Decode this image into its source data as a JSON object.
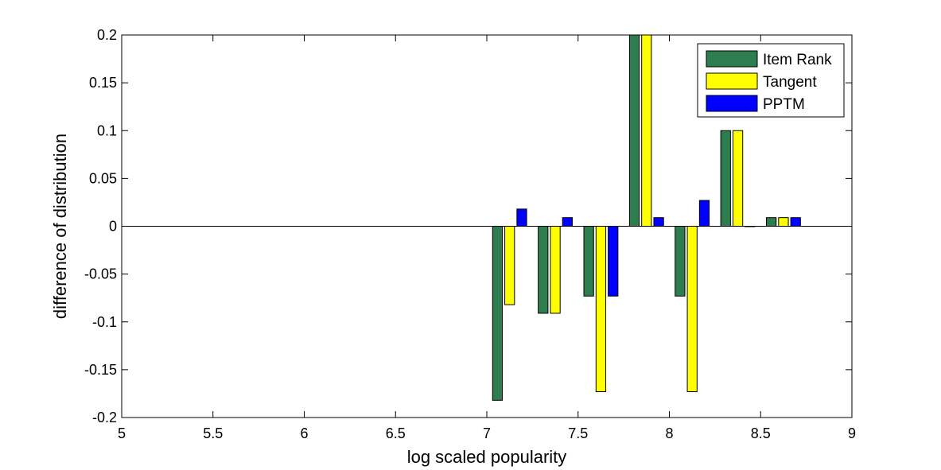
{
  "chart_data": {
    "type": "bar",
    "xlabel": "log scaled popularity",
    "ylabel": "difference of distribution",
    "xlim": [
      5,
      9
    ],
    "ylim": [
      -0.2,
      0.2
    ],
    "xticks": [
      "5",
      "5.5",
      "6",
      "6.5",
      "7",
      "7.5",
      "8",
      "8.5",
      "9"
    ],
    "yticks": [
      "-0.2",
      "-0.15",
      "-0.1",
      "-0.05",
      "0",
      "0.05",
      "0.1",
      "0.15",
      "0.2"
    ],
    "x": [
      7.125,
      7.375,
      7.625,
      7.875,
      8.125,
      8.375,
      8.625
    ],
    "series": [
      {
        "name": "Item Rank",
        "color": "#2e7d4f",
        "values": [
          -0.182,
          -0.091,
          -0.073,
          0.2,
          -0.073,
          0.1,
          0.009
        ]
      },
      {
        "name": "Tangent",
        "color": "#ffff00",
        "values": [
          -0.082,
          -0.091,
          -0.173,
          0.2,
          -0.173,
          0.1,
          0.009
        ]
      },
      {
        "name": "PPTM",
        "color": "#0000ff",
        "values": [
          0.018,
          0.009,
          -0.073,
          0.009,
          0.027,
          0,
          0.009
        ]
      }
    ],
    "legend_position": "top-right",
    "grid": false
  }
}
